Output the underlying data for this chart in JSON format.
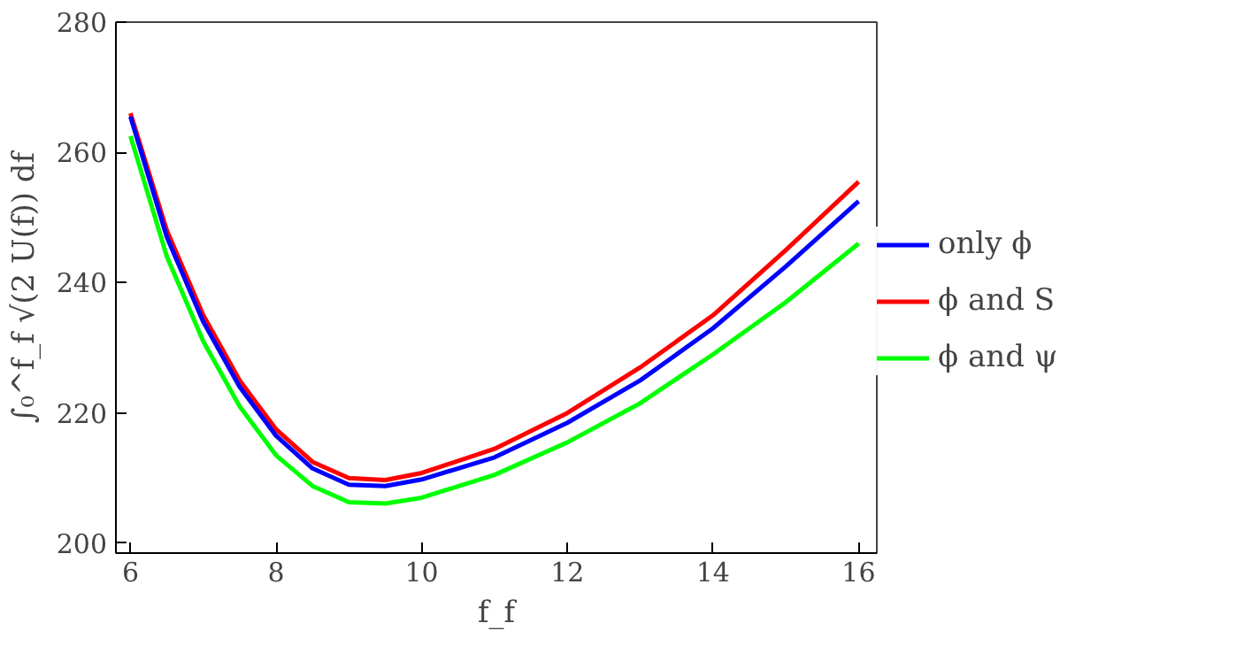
{
  "chart_data": {
    "type": "line",
    "xlabel": "f_f",
    "ylabel": "∫₀^f_f √(2 U(f)) df",
    "x": [
      6,
      6.5,
      7,
      7.5,
      8,
      8.5,
      9,
      9.5,
      10,
      11,
      12,
      13,
      14,
      15,
      16
    ],
    "series": [
      {
        "name": "only ϕ",
        "color": "#0000ff",
        "values": [
          265.5,
          247,
          234,
          224,
          216.5,
          211.5,
          209,
          208.8,
          209.8,
          213.2,
          218.5,
          225,
          233,
          242.5,
          252.5
        ]
      },
      {
        "name": "ϕ and S",
        "color": "#ff0000",
        "values": [
          266,
          248,
          235,
          225,
          217.5,
          212.5,
          210,
          209.7,
          210.8,
          214.5,
          220,
          227,
          235,
          245,
          255.5
        ]
      },
      {
        "name": "ϕ and ψ",
        "color": "#00ff00",
        "values": [
          262.5,
          244,
          231,
          221,
          213.5,
          208.8,
          206.3,
          206.1,
          207,
          210.5,
          215.5,
          221.5,
          229,
          237,
          246
        ]
      }
    ],
    "xlim": [
      5.8,
      16.25
    ],
    "ylim": [
      198.5,
      280
    ],
    "xticks": [
      6,
      8,
      10,
      12,
      14,
      16
    ],
    "yticks": [
      200,
      220,
      240,
      260,
      280
    ],
    "grid": false,
    "legend": "right",
    "marker": "none",
    "line_style": "solid"
  }
}
